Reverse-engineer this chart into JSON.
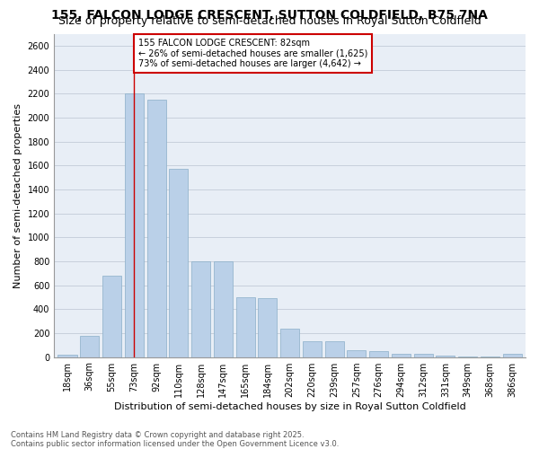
{
  "title1": "155, FALCON LODGE CRESCENT, SUTTON COLDFIELD, B75 7NA",
  "title2": "Size of property relative to semi-detached houses in Royal Sutton Coldfield",
  "xlabel": "Distribution of semi-detached houses by size in Royal Sutton Coldfield",
  "ylabel": "Number of semi-detached properties",
  "categories": [
    "18sqm",
    "36sqm",
    "55sqm",
    "73sqm",
    "92sqm",
    "110sqm",
    "128sqm",
    "147sqm",
    "165sqm",
    "184sqm",
    "202sqm",
    "220sqm",
    "239sqm",
    "257sqm",
    "276sqm",
    "294sqm",
    "312sqm",
    "331sqm",
    "349sqm",
    "368sqm",
    "386sqm"
  ],
  "values": [
    20,
    180,
    680,
    2200,
    2150,
    1575,
    800,
    800,
    500,
    490,
    240,
    130,
    130,
    55,
    50,
    30,
    25,
    10,
    5,
    5,
    25
  ],
  "bar_color": "#bad0e8",
  "bar_edge_color": "#8aaec8",
  "highlight_index": 3,
  "highlight_line_color": "#cc0000",
  "annotation_text": "155 FALCON LODGE CRESCENT: 82sqm\n← 26% of semi-detached houses are smaller (1,625)\n73% of semi-detached houses are larger (4,642) →",
  "annotation_box_color": "#ffffff",
  "annotation_box_edge_color": "#cc0000",
  "ylim": [
    0,
    2700
  ],
  "yticks": [
    0,
    200,
    400,
    600,
    800,
    1000,
    1200,
    1400,
    1600,
    1800,
    2000,
    2200,
    2400,
    2600
  ],
  "footer_text": "Contains HM Land Registry data © Crown copyright and database right 2025.\nContains public sector information licensed under the Open Government Licence v3.0.",
  "bg_color": "#ffffff",
  "plot_bg_color": "#e8eef6",
  "grid_color": "#c8d0dc",
  "title_fontsize": 10,
  "subtitle_fontsize": 9,
  "tick_fontsize": 7,
  "ylabel_fontsize": 8,
  "xlabel_fontsize": 8,
  "annotation_fontsize": 7,
  "footer_fontsize": 6
}
